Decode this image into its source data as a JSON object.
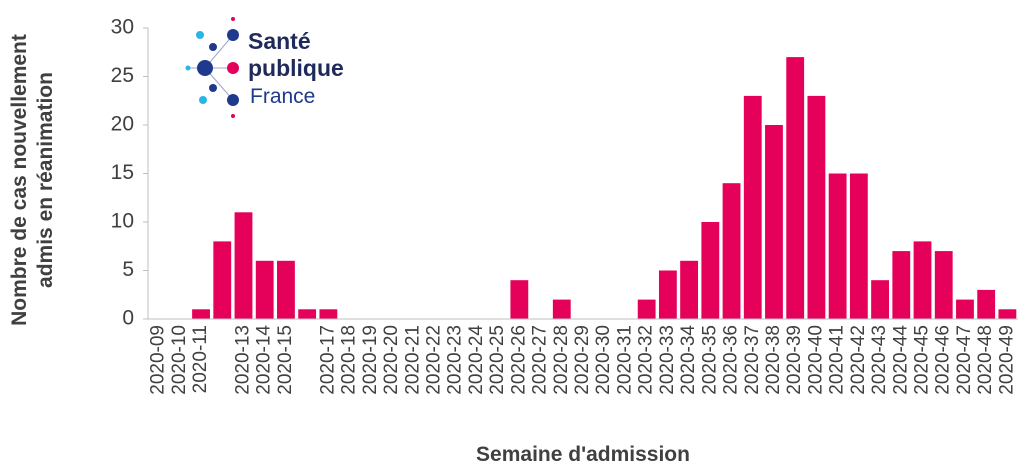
{
  "logo": {
    "lines": [
      "Santé",
      "publique",
      "France"
    ]
  },
  "chart_data": {
    "type": "bar",
    "y_label": [
      "Nombre de cas nouvellement",
      "admis en réanimation"
    ],
    "x_label": "Semaine d'admission",
    "categories": [
      "2020-09",
      "2020-10",
      "2020-11",
      null,
      "2020-13",
      "2020-14",
      "2020-15",
      null,
      "2020-17",
      "2020-18",
      "2020-19",
      "2020-20",
      "2020-21",
      "2020-22",
      "2020-23",
      "2020-24",
      "2020-25",
      "2020-26",
      "2020-27",
      "2020-28",
      "2020-29",
      "2020-30",
      "2020-31",
      "2020-32",
      "2020-33",
      "2020-34",
      "2020-35",
      "2020-36",
      "2020-37",
      "2020-38",
      "2020-39",
      "2020-40",
      "2020-41",
      "2020-42",
      "2020-43",
      "2020-44",
      "2020-45",
      "2020-46",
      "2020-47",
      "2020-48",
      "2020-49"
    ],
    "values": [
      0,
      0,
      1,
      8,
      11,
      6,
      6,
      1,
      1,
      0,
      0,
      0,
      0,
      0,
      0,
      0,
      0,
      4,
      0,
      2,
      0,
      0,
      0,
      2,
      5,
      6,
      10,
      14,
      23,
      20,
      27,
      23,
      15,
      15,
      4,
      7,
      8,
      7,
      2,
      3,
      1
    ],
    "color": "#e5005a",
    "ylim": [
      0,
      30
    ],
    "yticks": [
      0,
      5,
      10,
      15,
      20,
      25,
      30
    ],
    "grid": false
  }
}
